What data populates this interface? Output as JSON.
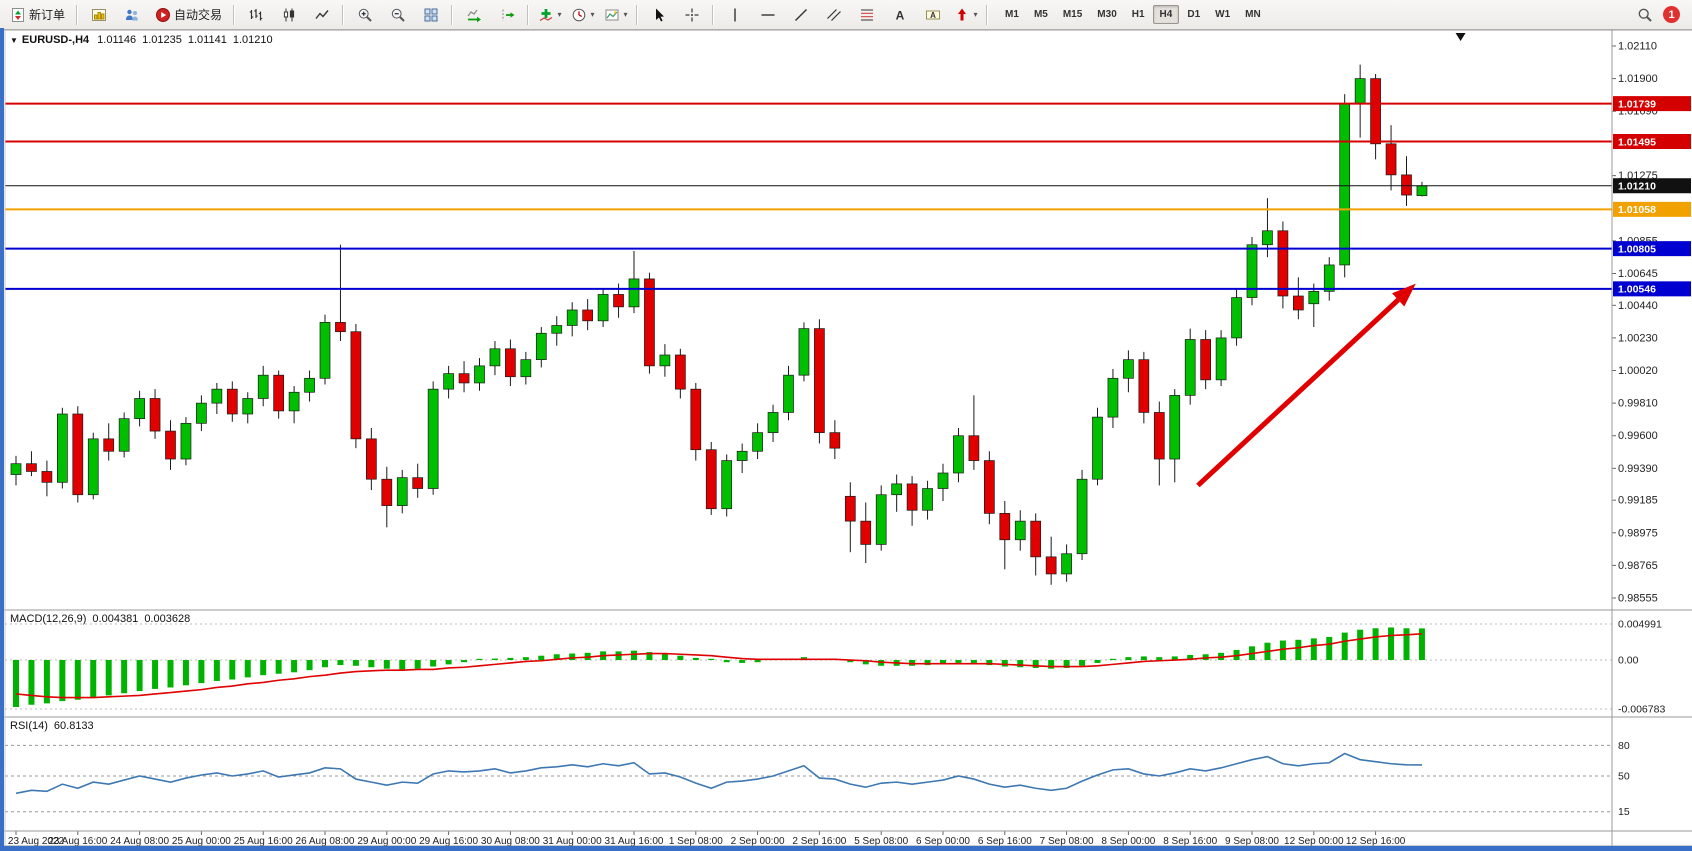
{
  "toolbar": {
    "new_order_label": "新订单",
    "autotrading_label": "自动交易",
    "timeframes": [
      "M1",
      "M5",
      "M15",
      "M30",
      "H1",
      "H4",
      "D1",
      "W1",
      "MN"
    ],
    "active_timeframe": "H4",
    "notification_count": "1"
  },
  "price_panel": {
    "symbol": "EURUSD-,H4",
    "open": "1.01146",
    "high": "1.01235",
    "low": "1.01141",
    "close": "1.01210"
  },
  "macd_panel": {
    "label": "MACD(12,26,9)",
    "value_main": "0.004381",
    "value_signal": "0.003628"
  },
  "rsi_panel": {
    "label": "RSI(14)",
    "value": "60.8133"
  },
  "chart_data": {
    "type": "candlestick",
    "symbol": "EURUSD-",
    "timeframe": "H4",
    "price_range": [
      0.98555,
      1.0211
    ],
    "axis_labels": [
      1.0211,
      1.019,
      1.0169,
      1.01275,
      1.00855,
      1.00645,
      1.0044,
      1.0023,
      1.0002,
      0.9981,
      0.996,
      0.9939,
      0.99185,
      0.98975,
      0.98765,
      0.98555
    ],
    "price_lines": [
      {
        "price": 1.01739,
        "color": "#d40000",
        "width": 2,
        "badge": "1.01739"
      },
      {
        "price": 1.01495,
        "color": "#d40000",
        "width": 2,
        "badge": "1.01495"
      },
      {
        "price": 1.0121,
        "color": "#111111",
        "width": 1,
        "badge": "1.01210"
      },
      {
        "price": 1.01058,
        "color": "#f2a200",
        "width": 2,
        "badge": "1.01058"
      },
      {
        "price": 1.00805,
        "color": "#0000d0",
        "width": 2,
        "badge": "1.00805"
      },
      {
        "price": 1.00546,
        "color": "#0000d0",
        "width": 2,
        "badge": "1.00546"
      }
    ],
    "trend_arrow": {
      "from_index": 76.5,
      "from_price": 0.9928,
      "to_index": 90.6,
      "to_price": 1.0058,
      "color": "#e00000"
    },
    "shift_marker_index": 93.5,
    "colors": {
      "up": "#00bf00",
      "down": "#e00000",
      "outline": "#1a1a1a"
    },
    "candles": [
      [
        0.9935,
        0.9947,
        0.9928,
        0.9942
      ],
      [
        0.9942,
        0.995,
        0.9934,
        0.9937
      ],
      [
        0.9937,
        0.9944,
        0.9921,
        0.993
      ],
      [
        0.993,
        0.9978,
        0.9926,
        0.9974
      ],
      [
        0.9974,
        0.9979,
        0.9917,
        0.9922
      ],
      [
        0.9922,
        0.9962,
        0.9919,
        0.9958
      ],
      [
        0.9958,
        0.9968,
        0.9944,
        0.995
      ],
      [
        0.995,
        0.9975,
        0.9946,
        0.9971
      ],
      [
        0.9971,
        0.9989,
        0.9966,
        0.9984
      ],
      [
        0.9984,
        0.999,
        0.9958,
        0.9963
      ],
      [
        0.9963,
        0.997,
        0.9938,
        0.9945
      ],
      [
        0.9945,
        0.9972,
        0.9941,
        0.9968
      ],
      [
        0.9968,
        0.9986,
        0.9963,
        0.9981
      ],
      [
        0.9981,
        0.9994,
        0.9974,
        0.999
      ],
      [
        0.999,
        0.9995,
        0.9969,
        0.9974
      ],
      [
        0.9974,
        0.9988,
        0.9968,
        0.9984
      ],
      [
        0.9984,
        1.0005,
        0.9979,
        0.9999
      ],
      [
        0.9999,
        1.0002,
        0.9971,
        0.9976
      ],
      [
        0.9976,
        0.9992,
        0.9968,
        0.9988
      ],
      [
        0.9988,
        1.0002,
        0.9982,
        0.9997
      ],
      [
        0.9997,
        1.0038,
        0.9993,
        1.0033
      ],
      [
        1.0033,
        1.0083,
        1.0021,
        1.0027
      ],
      [
        1.0027,
        1.0032,
        0.9952,
        0.9958
      ],
      [
        0.9958,
        0.9965,
        0.9925,
        0.9932
      ],
      [
        0.9932,
        0.994,
        0.9901,
        0.9915
      ],
      [
        0.9915,
        0.9938,
        0.991,
        0.9933
      ],
      [
        0.9933,
        0.9942,
        0.992,
        0.9926
      ],
      [
        0.9926,
        0.9995,
        0.9922,
        0.999
      ],
      [
        0.999,
        1.0005,
        0.9984,
        1.0
      ],
      [
        1.0,
        1.0008,
        0.9988,
        0.9994
      ],
      [
        0.9994,
        1.001,
        0.9989,
        1.0005
      ],
      [
        1.0005,
        1.0021,
        0.9999,
        1.0016
      ],
      [
        1.0016,
        1.0022,
        0.9992,
        0.9998
      ],
      [
        0.9998,
        1.0014,
        0.9993,
        1.0009
      ],
      [
        1.0009,
        1.003,
        1.0004,
        1.0026
      ],
      [
        1.0026,
        1.0037,
        1.0018,
        1.0031
      ],
      [
        1.0031,
        1.0046,
        1.0024,
        1.0041
      ],
      [
        1.0041,
        1.0048,
        1.0028,
        1.0034
      ],
      [
        1.0034,
        1.0055,
        1.003,
        1.0051
      ],
      [
        1.0051,
        1.0058,
        1.0036,
        1.0043
      ],
      [
        1.0043,
        1.0079,
        1.0039,
        1.0061
      ],
      [
        1.0061,
        1.0065,
        1.0,
        1.0005
      ],
      [
        1.0005,
        1.0019,
        0.9998,
        1.0012
      ],
      [
        1.0012,
        1.0016,
        0.9984,
        0.999
      ],
      [
        0.999,
        0.9994,
        0.9944,
        0.9951
      ],
      [
        0.9951,
        0.9956,
        0.9909,
        0.9913
      ],
      [
        0.9913,
        0.9948,
        0.9908,
        0.9944
      ],
      [
        0.9944,
        0.9955,
        0.9936,
        0.995
      ],
      [
        0.995,
        0.9968,
        0.9945,
        0.9962
      ],
      [
        0.9962,
        0.998,
        0.9956,
        0.9975
      ],
      [
        0.9975,
        1.0005,
        0.997,
        0.9999
      ],
      [
        0.9999,
        1.0033,
        0.9995,
        1.0029
      ],
      [
        1.0029,
        1.0035,
        0.9955,
        0.9962
      ],
      [
        0.9962,
        0.997,
        0.9945,
        0.9952
      ],
      [
        0.9921,
        0.993,
        0.9885,
        0.9905
      ],
      [
        0.9905,
        0.9917,
        0.9878,
        0.989
      ],
      [
        0.989,
        0.9928,
        0.9886,
        0.9922
      ],
      [
        0.9922,
        0.9935,
        0.9911,
        0.9929
      ],
      [
        0.9929,
        0.9934,
        0.9902,
        0.9912
      ],
      [
        0.9912,
        0.9931,
        0.9906,
        0.9926
      ],
      [
        0.9926,
        0.9942,
        0.9918,
        0.9936
      ],
      [
        0.9936,
        0.9965,
        0.993,
        0.996
      ],
      [
        0.996,
        0.9986,
        0.9938,
        0.9944
      ],
      [
        0.9944,
        0.995,
        0.9903,
        0.991
      ],
      [
        0.991,
        0.9918,
        0.9874,
        0.9893
      ],
      [
        0.9893,
        0.9912,
        0.9886,
        0.9905
      ],
      [
        0.9905,
        0.991,
        0.987,
        0.9882
      ],
      [
        0.9882,
        0.9895,
        0.9864,
        0.9871
      ],
      [
        0.9871,
        0.989,
        0.9866,
        0.9884
      ],
      [
        0.9884,
        0.9938,
        0.988,
        0.9932
      ],
      [
        0.9932,
        0.9978,
        0.9928,
        0.9972
      ],
      [
        0.9972,
        1.0003,
        0.9965,
        0.9997
      ],
      [
        0.9997,
        1.0015,
        0.9988,
        1.0009
      ],
      [
        1.0009,
        1.0014,
        0.9968,
        0.9975
      ],
      [
        0.9975,
        0.9982,
        0.9928,
        0.9945
      ],
      [
        0.9945,
        0.999,
        0.993,
        0.9986
      ],
      [
        0.9986,
        1.0029,
        0.998,
        1.0022
      ],
      [
        1.0022,
        1.0028,
        0.999,
        0.9996
      ],
      [
        0.9996,
        1.0028,
        0.9992,
        1.0023
      ],
      [
        1.0023,
        1.0054,
        1.0018,
        1.0049
      ],
      [
        1.0049,
        1.0088,
        1.0044,
        1.0083
      ],
      [
        1.0083,
        1.0113,
        1.0075,
        1.0092
      ],
      [
        1.0092,
        1.0098,
        1.0042,
        1.005
      ],
      [
        1.005,
        1.0062,
        1.0035,
        1.0041
      ],
      [
        1.0045,
        1.0058,
        1.003,
        1.0053
      ],
      [
        1.0053,
        1.0075,
        1.0047,
        1.007
      ],
      [
        1.007,
        1.018,
        1.0062,
        1.0174
      ],
      [
        1.0174,
        1.0199,
        1.0152,
        1.019
      ],
      [
        1.019,
        1.0193,
        1.0138,
        1.0148
      ],
      [
        1.0148,
        1.016,
        1.0118,
        1.0128
      ],
      [
        1.0128,
        1.014,
        1.0108,
        1.0115
      ],
      [
        1.01146,
        1.01235,
        1.01141,
        1.0121
      ]
    ],
    "time_labels": [
      "23 Aug 2022",
      "23 Aug 16:00",
      "24 Aug 08:00",
      "25 Aug 00:00",
      "25 Aug 16:00",
      "26 Aug 08:00",
      "29 Aug 00:00",
      "29 Aug 16:00",
      "30 Aug 08:00",
      "31 Aug 00:00",
      "31 Aug 16:00",
      "1 Sep 08:00",
      "2 Sep 00:00",
      "2 Sep 16:00",
      "5 Sep 08:00",
      "6 Sep 00:00",
      "6 Sep 16:00",
      "7 Sep 08:00",
      "8 Sep 00:00",
      "8 Sep 16:00",
      "9 Sep 08:00",
      "12 Sep 00:00",
      "12 Sep 16:00"
    ],
    "macd": {
      "axis_max": "0.004991",
      "axis_zero": "0.00",
      "axis_min": "-0.006783",
      "range": [
        -0.006783,
        0.004991
      ],
      "hist_color": "#00b300",
      "signal_color": "#e00000",
      "histogram": [
        -0.0065,
        -0.0062,
        -0.006,
        -0.0057,
        -0.0055,
        -0.0052,
        -0.0049,
        -0.0046,
        -0.0043,
        -0.004,
        -0.0038,
        -0.0035,
        -0.0032,
        -0.0029,
        -0.0027,
        -0.0024,
        -0.0021,
        -0.0019,
        -0.0017,
        -0.0014,
        -0.001,
        -0.0007,
        -0.0008,
        -0.001,
        -0.0012,
        -0.0013,
        -0.0012,
        -0.0009,
        -0.0006,
        -0.0003,
        -0.0001,
        0.0002,
        0.0003,
        0.0004,
        0.0006,
        0.0008,
        0.0009,
        0.001,
        0.0012,
        0.0012,
        0.0013,
        0.0011,
        0.0009,
        0.0006,
        0.0003,
        -0.0001,
        -0.0003,
        -0.0004,
        -0.0003,
        -0.0001,
        0.0001,
        0.0004,
        0.0002,
        0.0,
        -0.0003,
        -0.0006,
        -0.0008,
        -0.0008,
        -0.0008,
        -0.0007,
        -0.0006,
        -0.0004,
        -0.0005,
        -0.0007,
        -0.0009,
        -0.001,
        -0.0011,
        -0.0012,
        -0.0011,
        -0.0008,
        -0.0004,
        0.0001,
        0.0004,
        0.0005,
        0.0004,
        0.0005,
        0.0007,
        0.0008,
        0.001,
        0.0014,
        0.0019,
        0.0024,
        0.0027,
        0.0028,
        0.003,
        0.0032,
        0.0038,
        0.0042,
        0.0044,
        0.0045,
        0.0044,
        0.004381
      ],
      "signal": [
        -0.0047,
        -0.0049,
        -0.0051,
        -0.0052,
        -0.0052,
        -0.0052,
        -0.0051,
        -0.005,
        -0.0049,
        -0.0047,
        -0.0045,
        -0.0043,
        -0.0041,
        -0.0038,
        -0.0036,
        -0.0033,
        -0.0031,
        -0.0028,
        -0.0026,
        -0.0023,
        -0.0021,
        -0.0018,
        -0.0016,
        -0.0015,
        -0.0014,
        -0.0014,
        -0.0013,
        -0.0013,
        -0.0011,
        -0.001,
        -0.0008,
        -0.0006,
        -0.0004,
        -0.0002,
        -0.0001,
        0.0001,
        0.0003,
        0.0004,
        0.0006,
        0.0007,
        0.0008,
        0.0009,
        0.0009,
        0.0008,
        0.0007,
        0.0006,
        0.0004,
        0.0002,
        0.0001,
        0.0001,
        0.0001,
        0.0001,
        0.0001,
        0.0001,
        0.0,
        -0.0001,
        -0.0003,
        -0.0004,
        -0.0005,
        -0.0005,
        -0.0005,
        -0.0005,
        -0.0005,
        -0.0005,
        -0.0006,
        -0.0007,
        -0.0008,
        -0.0009,
        -0.0009,
        -0.0009,
        -0.0008,
        -0.0006,
        -0.0004,
        -0.0002,
        -0.0001,
        0.0,
        0.0001,
        0.0003,
        0.0004,
        0.0006,
        0.0009,
        0.0012,
        0.0015,
        0.0017,
        0.002,
        0.0022,
        0.0026,
        0.0029,
        0.0032,
        0.0034,
        0.0035,
        0.003628
      ]
    },
    "rsi": {
      "levels": [
        80,
        50,
        15
      ],
      "line_color": "#3e78b2",
      "values": [
        33,
        36,
        35,
        42,
        38,
        44,
        42,
        46,
        50,
        47,
        44,
        48,
        51,
        53,
        50,
        52,
        55,
        49,
        51,
        53,
        58,
        57,
        47,
        44,
        41,
        44,
        43,
        52,
        55,
        54,
        55,
        57,
        53,
        55,
        58,
        59,
        61,
        59,
        62,
        60,
        63,
        52,
        53,
        49,
        43,
        38,
        44,
        45,
        47,
        50,
        55,
        60,
        48,
        47,
        42,
        39,
        43,
        44,
        42,
        44,
        46,
        50,
        47,
        42,
        39,
        41,
        38,
        36,
        38,
        45,
        51,
        56,
        57,
        52,
        50,
        53,
        57,
        55,
        58,
        62,
        66,
        69,
        62,
        60,
        62,
        63,
        72,
        66,
        64,
        62,
        61,
        60.8
      ]
    }
  }
}
